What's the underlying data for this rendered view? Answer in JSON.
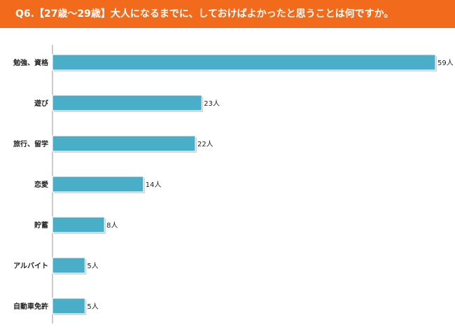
{
  "title": "Q6.【27歳～29歳】大人になるまでに、しておけばよかったと思うことは何ですか。",
  "colors": {
    "header": "#f26b1d",
    "bar": "#4aaec9",
    "bar_edge": "#ffffff",
    "axis": "#999999"
  },
  "chart_data": {
    "type": "bar",
    "orientation": "horizontal",
    "title": "Q6.【27歳～29歳】大人になるまでに、しておけばよかったと思うことは何ですか。",
    "categories": [
      "勉強、資格",
      "遊び",
      "旅行、留学",
      "恋愛",
      "貯蓄",
      "アルバイト",
      "自動車免許"
    ],
    "values": [
      59,
      23,
      22,
      14,
      8,
      5,
      5
    ],
    "value_labels": [
      "59人",
      "23人",
      "22人",
      "14人",
      "8人",
      "5人",
      "5人"
    ],
    "unit": "人",
    "xlim": [
      0,
      59
    ],
    "grid": false,
    "legend": "none"
  }
}
